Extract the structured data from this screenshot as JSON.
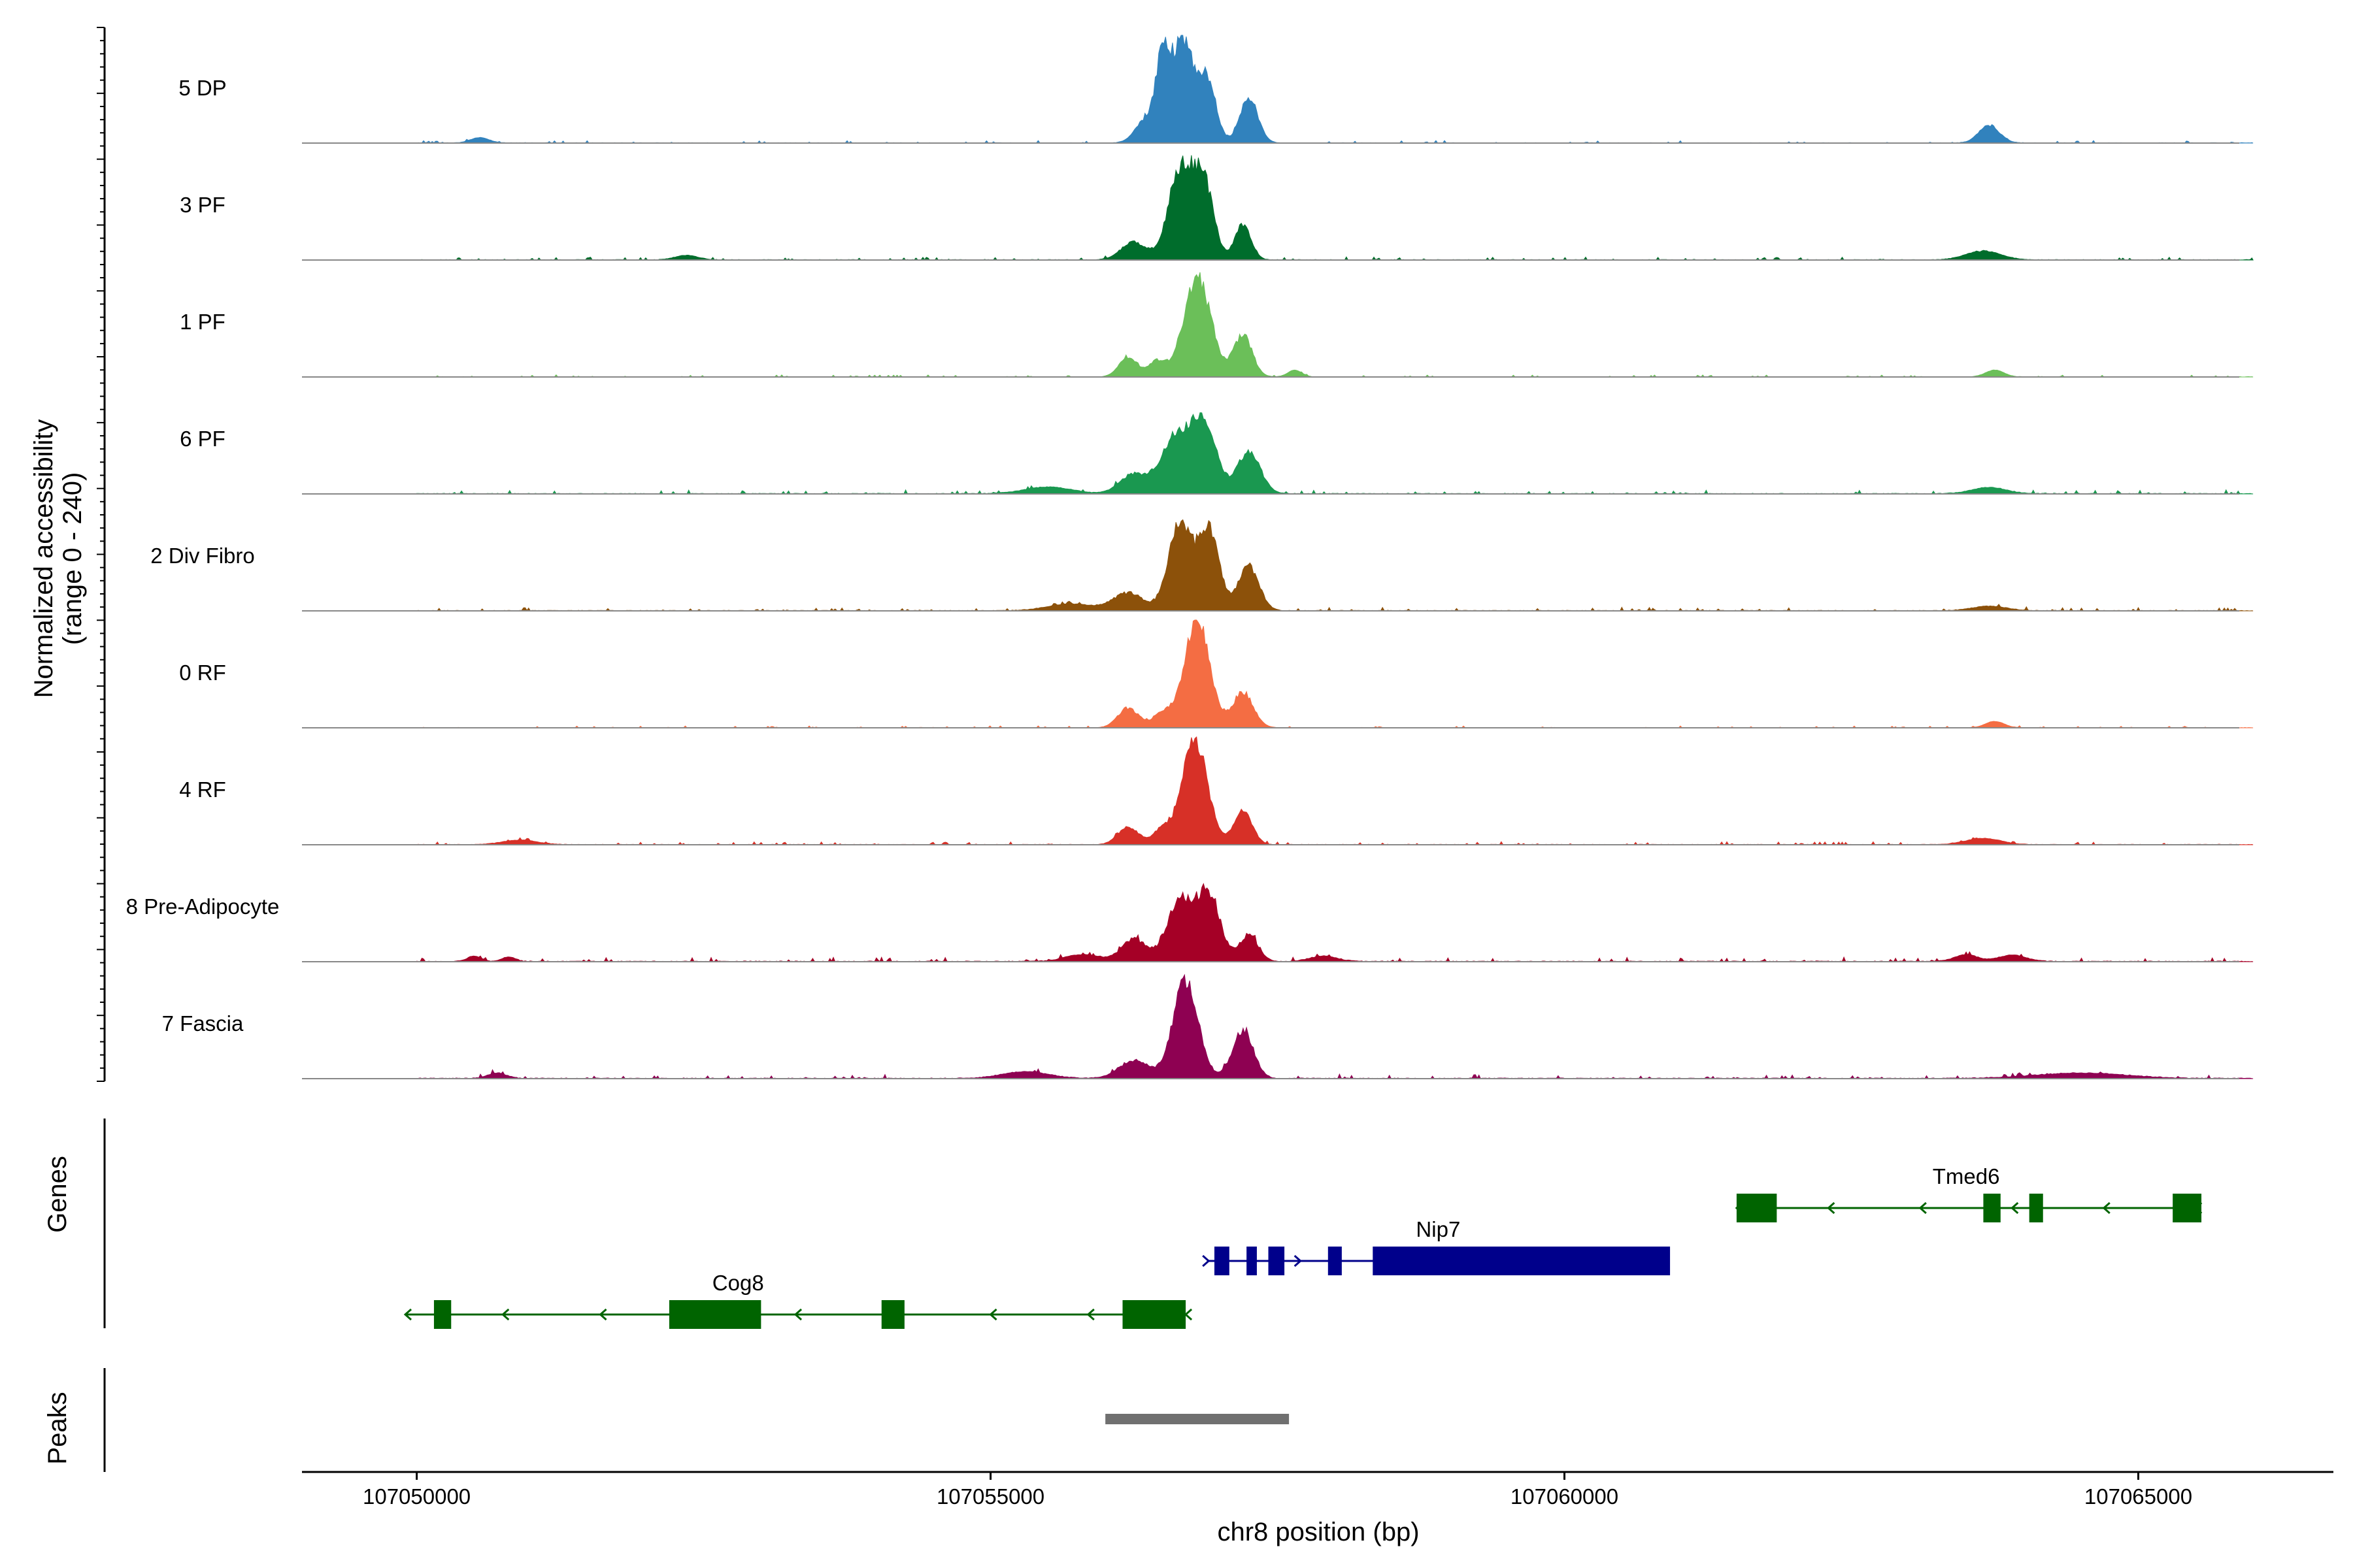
{
  "chart_data": {
    "type": "area",
    "title": "",
    "ylabel_line1": "Normalized accessibility",
    "ylabel_line2": "(range 0 - 240)",
    "y_range": [
      0,
      240
    ],
    "xlabel": "chr8 position (bp)",
    "xlim": [
      107049000,
      107066700
    ],
    "x_ticks": [
      107050000,
      107055000,
      107060000,
      107065000
    ],
    "x_tick_labels": [
      "107050000",
      "107055000",
      "107060000",
      "107065000"
    ],
    "track_labels": {
      "genes": "Genes",
      "peaks": "Peaks"
    },
    "tracks": [
      {
        "name": "5 DP",
        "color": "#3182BD",
        "peaks": [
          [
            107056500,
            170,
            60
          ],
          [
            107056680,
            230,
            100
          ],
          [
            107056900,
            130,
            70
          ],
          [
            107057250,
            100,
            80
          ],
          [
            107056350,
            50,
            90
          ],
          [
            107063700,
            40,
            90
          ],
          [
            107050550,
            12,
            80
          ]
        ],
        "noise": 5
      },
      {
        "name": "3 PF",
        "color": "#006D2C",
        "peaks": [
          [
            107056250,
            40,
            110
          ],
          [
            107056650,
            200,
            100
          ],
          [
            107056850,
            175,
            90
          ],
          [
            107057200,
            80,
            70
          ],
          [
            107063650,
            20,
            150
          ],
          [
            107052350,
            10,
            100
          ]
        ],
        "noise": 6
      },
      {
        "name": "1 PF",
        "color": "#6BBF59",
        "peaks": [
          [
            107056200,
            45,
            80
          ],
          [
            107056450,
            35,
            70
          ],
          [
            107056800,
            220,
            120
          ],
          [
            107057200,
            95,
            80
          ],
          [
            107057650,
            15,
            60
          ],
          [
            107063750,
            15,
            80
          ]
        ],
        "noise": 4
      },
      {
        "name": "6 PF",
        "color": "#1A9850",
        "peaks": [
          [
            107056250,
            45,
            120
          ],
          [
            107056600,
            120,
            120
          ],
          [
            107056850,
            165,
            110
          ],
          [
            107057250,
            95,
            100
          ],
          [
            107055500,
            15,
            200
          ],
          [
            107063700,
            14,
            150
          ]
        ],
        "noise": 8
      },
      {
        "name": "2 Div Fibro",
        "color": "#8C510A",
        "peaks": [
          [
            107056200,
            40,
            130
          ],
          [
            107056650,
            200,
            100
          ],
          [
            107056900,
            180,
            90
          ],
          [
            107057250,
            100,
            90
          ],
          [
            107055700,
            15,
            200
          ],
          [
            107063700,
            10,
            150
          ]
        ],
        "noise": 7
      },
      {
        "name": "0 RF",
        "color": "#F46D43",
        "peaks": [
          [
            107056200,
            45,
            90
          ],
          [
            107056500,
            35,
            80
          ],
          [
            107056800,
            240,
            110
          ],
          [
            107057200,
            80,
            90
          ],
          [
            107063750,
            14,
            80
          ]
        ],
        "noise": 4
      },
      {
        "name": "4 RF",
        "color": "#D73027",
        "peaks": [
          [
            107056200,
            40,
            90
          ],
          [
            107056500,
            35,
            80
          ],
          [
            107056780,
            235,
            110
          ],
          [
            107057200,
            75,
            80
          ],
          [
            107063650,
            14,
            150
          ],
          [
            107050900,
            10,
            150
          ]
        ],
        "noise": 6
      },
      {
        "name": "8 Pre-Adipocyte",
        "color": "#A50026",
        "peaks": [
          [
            107056250,
            50,
            110
          ],
          [
            107056650,
            140,
            110
          ],
          [
            107056900,
            150,
            100
          ],
          [
            107057250,
            60,
            80
          ],
          [
            107055800,
            15,
            150
          ],
          [
            107063500,
            15,
            100
          ],
          [
            107050500,
            12,
            60
          ],
          [
            107050800,
            10,
            60
          ],
          [
            107057900,
            12,
            120
          ],
          [
            107063900,
            14,
            120
          ]
        ],
        "noise": 9
      },
      {
        "name": "7 Fascia",
        "color": "#8E0152",
        "peaks": [
          [
            107056250,
            40,
            130
          ],
          [
            107056700,
            220,
            110
          ],
          [
            107057200,
            110,
            90
          ],
          [
            107055300,
            15,
            200
          ],
          [
            107050700,
            12,
            80
          ],
          [
            107064500,
            12,
            400
          ]
        ],
        "noise": 9
      }
    ],
    "genes": [
      {
        "name": "Cog8",
        "color": "#006400",
        "strand": "-",
        "row": 3,
        "start": 107049900,
        "end": 107056700,
        "label_pos": 107052800,
        "exons": [
          [
            107050150,
            107050300
          ],
          [
            107052200,
            107053000
          ],
          [
            107054050,
            107054250
          ],
          [
            107056150,
            107056700
          ]
        ]
      },
      {
        "name": "Nip7",
        "color": "#00008B",
        "strand": "+",
        "row": 2,
        "start": 107056900,
        "end": 107060900,
        "label_pos": 107058900,
        "exons": [
          [
            107056950,
            107057080
          ],
          [
            107057230,
            107057320
          ],
          [
            107057420,
            107057560
          ],
          [
            107057940,
            107058060
          ],
          [
            107058330,
            107060920
          ]
        ]
      },
      {
        "name": "Tmed6",
        "color": "#006400",
        "strand": "-",
        "row": 1,
        "start": 107061500,
        "end": 107065500,
        "label_pos": 107063500,
        "exons": [
          [
            107061500,
            107061850
          ],
          [
            107063650,
            107063800
          ],
          [
            107064050,
            107064170
          ],
          [
            107065300,
            107065550
          ]
        ]
      }
    ],
    "peak_regions": [
      [
        107056000,
        107057600
      ]
    ]
  }
}
